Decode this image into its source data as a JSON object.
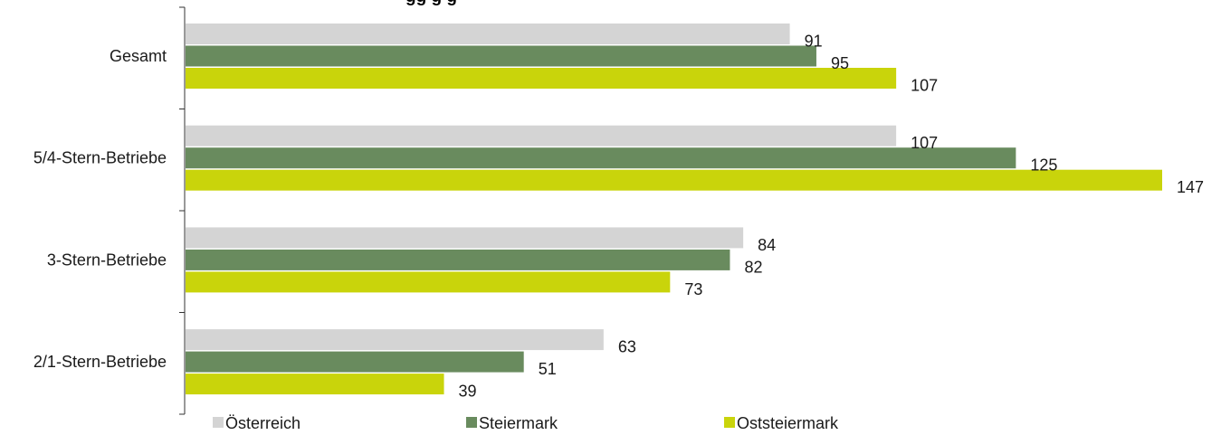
{
  "chart_data": {
    "type": "bar",
    "orientation": "horizontal",
    "title": "",
    "title_partial_visible": "gg g g",
    "categories": [
      "Gesamt",
      "5/4-Stern-Betriebe",
      "3-Stern-Betriebe",
      "2/1-Stern-Betriebe"
    ],
    "series": [
      {
        "name": "Österreich",
        "color": "#d4d4d4",
        "values": [
          91,
          107,
          84,
          63
        ]
      },
      {
        "name": "Steiermark",
        "color": "#698b5e",
        "values": [
          95,
          125,
          82,
          51
        ]
      },
      {
        "name": "Oststeiermark",
        "color": "#c9d40b",
        "values": [
          107,
          147,
          73,
          39
        ]
      }
    ],
    "xlim": [
      0,
      147
    ],
    "grid": false,
    "legend_position": "bottom"
  }
}
